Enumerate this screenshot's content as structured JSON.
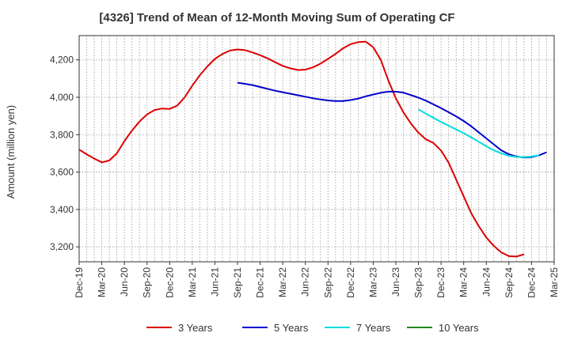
{
  "chart_data": {
    "type": "line",
    "title": "[4326]  Trend of Mean of 12-Month Moving Sum of Operating CF",
    "xlabel": "",
    "ylabel": "Amount (million yen)",
    "ylim": [
      3120,
      4330
    ],
    "yticks": [
      3200,
      3400,
      3600,
      3800,
      4000,
      4200
    ],
    "ytick_labels": [
      "3,200",
      "3,400",
      "3,600",
      "3,800",
      "4,000",
      "4,200"
    ],
    "xtick_labels": [
      "Dec-19",
      "Mar-20",
      "Jun-20",
      "Sep-20",
      "Dec-20",
      "Mar-21",
      "Jun-21",
      "Sep-21",
      "Dec-21",
      "Mar-22",
      "Jun-22",
      "Sep-22",
      "Dec-22",
      "Mar-23",
      "Jun-23",
      "Sep-23",
      "Dec-23",
      "Mar-24",
      "Jun-24",
      "Sep-24",
      "Dec-24",
      "Mar-25"
    ],
    "grid": true,
    "legend_position": "bottom",
    "series": [
      {
        "name": "3 Years",
        "color": "#dd0000",
        "start_month_index": 0,
        "values": [
          3720,
          3695,
          3672,
          3652,
          3662,
          3700,
          3765,
          3822,
          3870,
          3908,
          3932,
          3940,
          3938,
          3955,
          4000,
          4062,
          4118,
          4165,
          4205,
          4232,
          4250,
          4256,
          4252,
          4240,
          4225,
          4208,
          4188,
          4168,
          4155,
          4146,
          4148,
          4160,
          4180,
          4205,
          4232,
          4262,
          4284,
          4295,
          4298,
          4268,
          4200,
          4090,
          3995,
          3920,
          3860,
          3810,
          3775,
          3755,
          3715,
          3650,
          3560,
          3470,
          3380,
          3310,
          3250,
          3205,
          3170,
          3150,
          3148,
          3160
        ]
      },
      {
        "name": "5 Years",
        "color": "#0000cc",
        "start_month_index": 21,
        "values": [
          4078,
          4072,
          4065,
          4055,
          4045,
          4035,
          4027,
          4019,
          4011,
          4003,
          3995,
          3988,
          3983,
          3980,
          3980,
          3985,
          3993,
          4005,
          4015,
          4024,
          4030,
          4030,
          4025,
          4012,
          3998,
          3982,
          3962,
          3942,
          3920,
          3898,
          3873,
          3845,
          3812,
          3780,
          3748,
          3716,
          3695,
          3683,
          3678,
          3680,
          3690,
          3706
        ]
      },
      {
        "name": "7 Years",
        "color": "#00dddd",
        "start_month_index": 45,
        "values": [
          3935,
          3912,
          3890,
          3868,
          3848,
          3828,
          3808,
          3786,
          3762,
          3738,
          3716,
          3700,
          3687,
          3681,
          3680,
          3683,
          3690
        ]
      },
      {
        "name": "10 Years",
        "color": "#228822",
        "start_month_index": 0,
        "values": []
      }
    ]
  }
}
